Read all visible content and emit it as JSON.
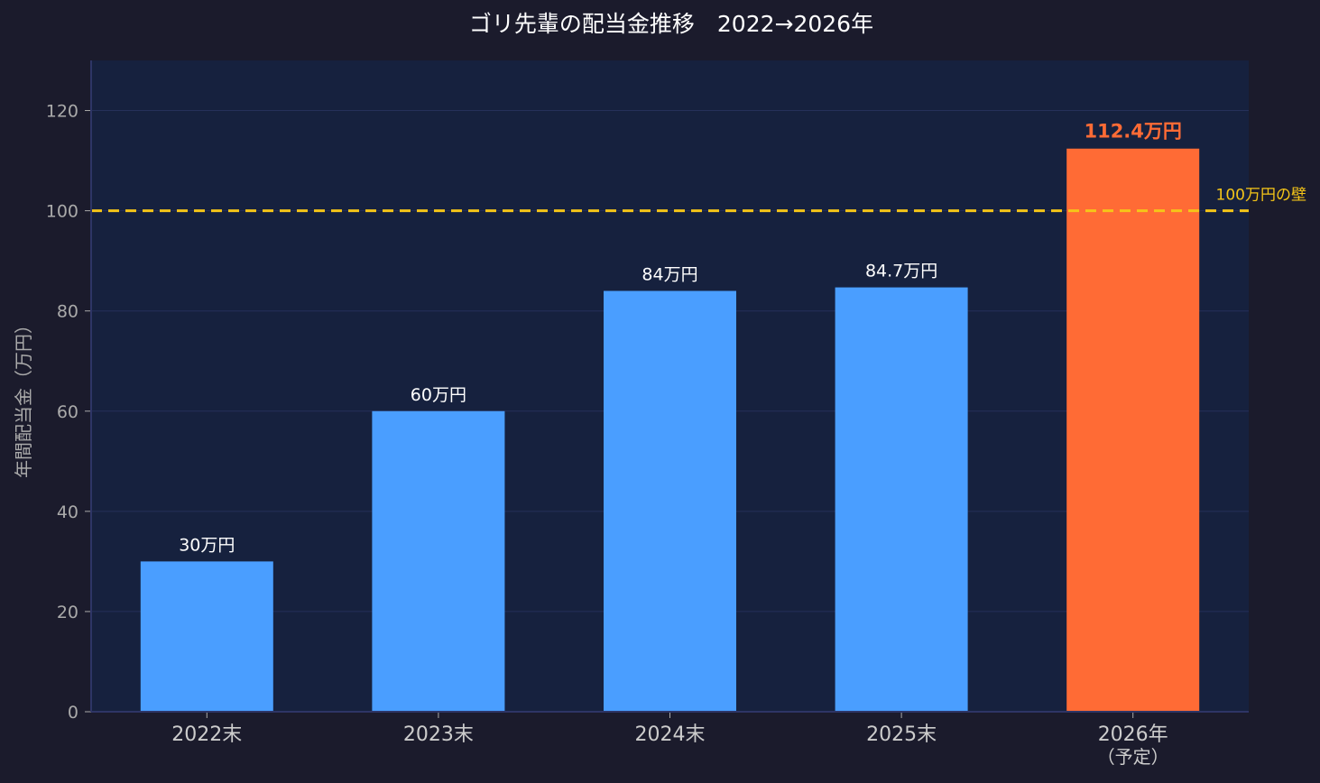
{
  "chart_data": {
    "type": "bar",
    "title": "ゴリ先輩の配当金推移　2022→2026年",
    "ylabel": "年間配当金（万円）",
    "xlabel": "",
    "ylim": [
      0,
      130
    ],
    "yticks": [
      0,
      20,
      40,
      60,
      80,
      100,
      120
    ],
    "ytick_labels": [
      "0",
      "20",
      "40",
      "60",
      "80",
      "100",
      "120"
    ],
    "grid": true,
    "categories": [
      {
        "label": "2022末",
        "sublabel": ""
      },
      {
        "label": "2023末",
        "sublabel": ""
      },
      {
        "label": "2024末",
        "sublabel": ""
      },
      {
        "label": "2025末",
        "sublabel": ""
      },
      {
        "label": "2026年",
        "sublabel": "（予定）"
      }
    ],
    "values": [
      30,
      60,
      84,
      84.7,
      112.4
    ],
    "data_labels": [
      "30万円",
      "60万円",
      "84万円",
      "84.7万円",
      "112.4万円"
    ],
    "bar_colors": [
      "#4a9eff",
      "#4a9eff",
      "#4a9eff",
      "#4a9eff",
      "#ff6b35"
    ],
    "highlight_index": 4,
    "reference_line": {
      "value": 100,
      "label": "100万円の壁",
      "color": "#f5c518",
      "style": "dashed"
    },
    "colors": {
      "background": "#1b1b2c",
      "plot_background": "#16213e",
      "grid": "#25305a",
      "axis": "#2e3566",
      "tick_text": "#aaaaaa",
      "title_text": "#ffffff",
      "data_label_text": "#ffffff",
      "highlight_text": "#ff6b35",
      "category_text": "#cccccc"
    }
  }
}
